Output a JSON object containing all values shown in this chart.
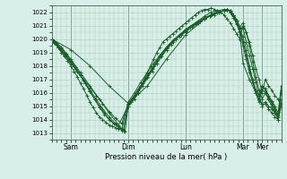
{
  "bg_color": "#d8eee8",
  "grid_color": "#aaccbb",
  "line_color": "#1a5c2a",
  "marker_color": "#1a5c2a",
  "xlabel": "Pression niveau de la mer( hPa )",
  "ylim": [
    1012.5,
    1022.5
  ],
  "yticks": [
    1013,
    1014,
    1015,
    1016,
    1017,
    1018,
    1019,
    1020,
    1021,
    1022
  ],
  "day_labels": [
    "Sam",
    "Dim",
    "Lun",
    "Mar",
    "Mer"
  ],
  "day_positions": [
    24,
    96,
    168,
    240,
    264
  ],
  "vline_positions": [
    24,
    96,
    168,
    240,
    264
  ],
  "xlim": [
    0,
    288
  ],
  "series": [
    [
      0,
      1020.0,
      2,
      1019.9,
      5,
      1019.7,
      8,
      1019.4,
      12,
      1019.0,
      16,
      1018.7,
      20,
      1018.4,
      24,
      1018.0,
      28,
      1017.6,
      32,
      1017.2,
      36,
      1016.7,
      40,
      1016.3,
      44,
      1015.8,
      48,
      1015.3,
      52,
      1014.9,
      56,
      1014.5,
      60,
      1014.2,
      64,
      1014.0,
      68,
      1013.8,
      72,
      1013.6,
      76,
      1013.5,
      80,
      1013.4,
      84,
      1013.3,
      88,
      1013.2,
      92,
      1013.1,
      96,
      1015.0,
      100,
      1015.3,
      104,
      1015.5,
      108,
      1016.0,
      112,
      1016.5,
      116,
      1017.0,
      120,
      1017.5,
      124,
      1018.0,
      128,
      1018.5,
      132,
      1019.0,
      136,
      1019.4,
      140,
      1019.8,
      144,
      1020.0,
      148,
      1020.2,
      152,
      1020.4,
      156,
      1020.6,
      160,
      1020.8,
      164,
      1021.0,
      168,
      1021.2,
      172,
      1021.4,
      176,
      1021.6,
      180,
      1021.8,
      184,
      1022.0,
      188,
      1022.1,
      192,
      1022.2,
      196,
      1022.2,
      200,
      1022.3,
      204,
      1022.2,
      208,
      1022.1,
      212,
      1022.0,
      216,
      1021.8,
      220,
      1021.5,
      224,
      1021.2,
      228,
      1020.8,
      232,
      1020.4,
      236,
      1020.0,
      240,
      1021.0,
      244,
      1020.5,
      248,
      1019.8,
      252,
      1018.8,
      256,
      1017.8,
      260,
      1017.0,
      264,
      1016.0,
      268,
      1017.0,
      272,
      1016.5,
      276,
      1016.2,
      280,
      1015.8,
      284,
      1015.5,
      288,
      1015.2
    ],
    [
      0,
      1019.8,
      8,
      1019.4,
      16,
      1018.8,
      24,
      1018.2,
      32,
      1017.6,
      40,
      1017.0,
      48,
      1016.4,
      56,
      1015.8,
      64,
      1015.2,
      72,
      1014.6,
      80,
      1014.1,
      88,
      1013.7,
      96,
      1015.2,
      104,
      1015.8,
      112,
      1016.5,
      120,
      1017.2,
      128,
      1018.0,
      136,
      1018.7,
      144,
      1019.3,
      152,
      1019.8,
      160,
      1020.2,
      168,
      1020.5,
      176,
      1020.9,
      184,
      1021.2,
      192,
      1021.5,
      200,
      1021.8,
      208,
      1022.0,
      216,
      1022.1,
      220,
      1022.2,
      224,
      1022.1,
      228,
      1021.8,
      232,
      1021.4,
      236,
      1020.9,
      240,
      1021.2,
      244,
      1020.5,
      248,
      1019.5,
      252,
      1018.3,
      256,
      1017.2,
      260,
      1016.2,
      264,
      1015.5,
      268,
      1016.0,
      272,
      1015.5,
      276,
      1015.0,
      280,
      1014.5,
      284,
      1014.0,
      288,
      1015.0
    ],
    [
      0,
      1019.9,
      6,
      1019.6,
      12,
      1019.2,
      18,
      1018.8,
      24,
      1018.3,
      30,
      1017.8,
      36,
      1017.3,
      42,
      1016.7,
      48,
      1016.1,
      54,
      1015.5,
      60,
      1015.0,
      66,
      1014.5,
      72,
      1014.0,
      78,
      1013.7,
      84,
      1013.4,
      90,
      1013.2,
      96,
      1015.0,
      102,
      1015.5,
      108,
      1016.0,
      114,
      1016.5,
      120,
      1017.1,
      126,
      1017.6,
      132,
      1018.2,
      138,
      1018.7,
      144,
      1019.2,
      150,
      1019.6,
      156,
      1020.0,
      162,
      1020.3,
      168,
      1020.6,
      174,
      1020.9,
      180,
      1021.1,
      186,
      1021.3,
      192,
      1021.5,
      198,
      1021.7,
      204,
      1021.8,
      210,
      1022.0,
      216,
      1022.1,
      220,
      1022.2,
      224,
      1022.1,
      228,
      1021.8,
      232,
      1021.4,
      236,
      1020.8,
      240,
      1020.8,
      244,
      1019.8,
      248,
      1018.8,
      252,
      1017.8,
      256,
      1016.8,
      260,
      1015.8,
      264,
      1015.0,
      268,
      1015.2,
      272,
      1014.8,
      276,
      1014.5,
      280,
      1014.2,
      284,
      1014.0,
      288,
      1015.2
    ],
    [
      0,
      1020.0,
      6,
      1019.7,
      12,
      1019.3,
      18,
      1018.9,
      24,
      1018.4,
      30,
      1017.9,
      36,
      1017.3,
      42,
      1016.7,
      48,
      1016.1,
      54,
      1015.5,
      60,
      1014.9,
      66,
      1014.4,
      72,
      1014.0,
      78,
      1013.7,
      84,
      1013.5,
      90,
      1013.2,
      96,
      1015.1,
      102,
      1015.6,
      108,
      1016.2,
      114,
      1016.7,
      120,
      1017.3,
      126,
      1017.8,
      132,
      1018.4,
      138,
      1018.9,
      144,
      1019.3,
      150,
      1019.7,
      156,
      1020.0,
      162,
      1020.3,
      168,
      1020.6,
      174,
      1020.9,
      180,
      1021.1,
      186,
      1021.3,
      192,
      1021.5,
      198,
      1021.7,
      204,
      1021.9,
      210,
      1022.0,
      216,
      1022.1,
      220,
      1022.2,
      224,
      1022.0,
      228,
      1021.7,
      232,
      1021.2,
      236,
      1020.6,
      240,
      1020.2,
      244,
      1019.2,
      248,
      1018.0,
      252,
      1017.0,
      256,
      1016.2,
      260,
      1015.5,
      264,
      1015.2,
      268,
      1015.3,
      272,
      1015.0,
      276,
      1014.8,
      280,
      1014.5,
      284,
      1014.2,
      288,
      1015.5
    ],
    [
      0,
      1019.8,
      8,
      1019.4,
      16,
      1018.9,
      24,
      1018.3,
      32,
      1017.6,
      40,
      1016.9,
      48,
      1016.2,
      56,
      1015.5,
      64,
      1014.8,
      72,
      1014.2,
      80,
      1013.7,
      88,
      1013.3,
      96,
      1015.3,
      104,
      1016.0,
      112,
      1016.8,
      120,
      1017.5,
      128,
      1018.2,
      136,
      1018.8,
      144,
      1019.4,
      152,
      1019.9,
      160,
      1020.3,
      168,
      1020.7,
      176,
      1021.0,
      184,
      1021.3,
      192,
      1021.6,
      200,
      1021.8,
      208,
      1022.0,
      216,
      1022.1,
      220,
      1022.2,
      224,
      1022.1,
      228,
      1021.8,
      232,
      1021.4,
      236,
      1020.8,
      240,
      1019.5,
      244,
      1018.5,
      248,
      1017.5,
      252,
      1016.8,
      256,
      1016.2,
      260,
      1015.8,
      264,
      1016.5,
      268,
      1016.2,
      272,
      1015.8,
      276,
      1015.3,
      280,
      1014.8,
      284,
      1014.3,
      288,
      1016.2
    ],
    [
      0,
      1020.0,
      12,
      1019.4,
      24,
      1018.5,
      36,
      1017.5,
      48,
      1016.5,
      60,
      1015.5,
      72,
      1014.5,
      84,
      1013.6,
      96,
      1015.0,
      108,
      1016.0,
      120,
      1017.2,
      132,
      1018.2,
      144,
      1019.2,
      156,
      1020.0,
      168,
      1020.7,
      180,
      1021.2,
      192,
      1021.7,
      200,
      1022.0,
      208,
      1022.1,
      216,
      1022.2,
      220,
      1022.2,
      224,
      1022.1,
      228,
      1021.8,
      232,
      1021.4,
      236,
      1020.8,
      240,
      1019.8,
      244,
      1018.8,
      248,
      1017.8,
      252,
      1016.8,
      256,
      1016.0,
      260,
      1015.3,
      264,
      1016.2,
      268,
      1016.0,
      272,
      1015.6,
      276,
      1015.2,
      280,
      1014.7,
      284,
      1014.2,
      288,
      1016.0
    ],
    [
      0,
      1020.0,
      24,
      1019.2,
      48,
      1018.0,
      72,
      1016.5,
      96,
      1015.2,
      120,
      1016.5,
      144,
      1018.5,
      168,
      1020.3,
      192,
      1021.5,
      208,
      1022.0,
      216,
      1022.1,
      220,
      1022.2,
      224,
      1022.0,
      228,
      1021.6,
      232,
      1021.1,
      236,
      1020.5,
      240,
      1018.2,
      248,
      1017.0,
      256,
      1016.0,
      260,
      1015.5,
      264,
      1016.5,
      268,
      1016.3,
      272,
      1015.8,
      276,
      1015.4,
      280,
      1015.0,
      284,
      1014.5,
      288,
      1016.5
    ]
  ]
}
